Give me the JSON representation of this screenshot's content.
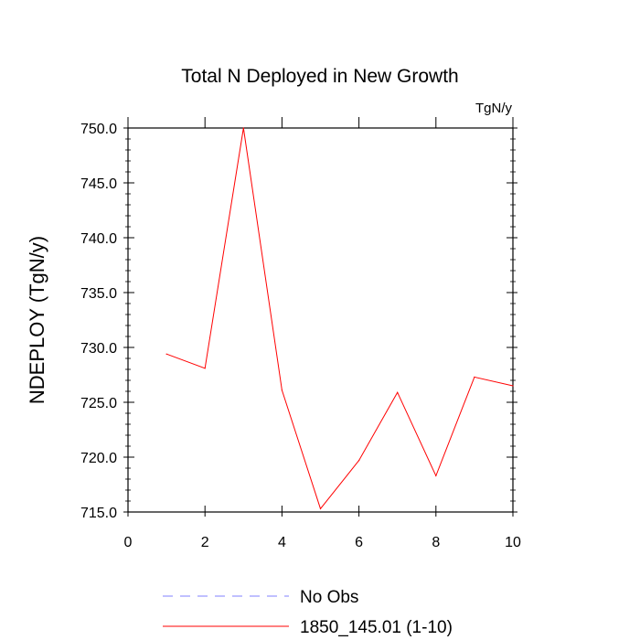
{
  "chart_data": {
    "type": "line",
    "title": "Total N Deployed in New Growth",
    "units_label": "TgN/y",
    "xlabel": "",
    "ylabel": "NDEPLOY  (TgN/y)",
    "xlim": [
      0,
      10
    ],
    "ylim": [
      715,
      750
    ],
    "x_ticks": [
      0,
      2,
      4,
      6,
      8,
      10
    ],
    "x_tick_labels": [
      "0",
      "2",
      "4",
      "6",
      "8",
      "10"
    ],
    "y_ticks": [
      715,
      720,
      725,
      730,
      735,
      740,
      745,
      750
    ],
    "y_tick_labels": [
      "715.0",
      "720.0",
      "725.0",
      "730.0",
      "735.0",
      "740.0",
      "745.0",
      "750.0"
    ],
    "grid": false,
    "legend_position": "bottom",
    "series": [
      {
        "name": "1850_145.01 (1-10)",
        "color": "#ff0000",
        "dash": "solid",
        "x": [
          1,
          2,
          3,
          4,
          5,
          6,
          7,
          8,
          9,
          10
        ],
        "values": [
          729.4,
          728.1,
          750.0,
          726.1,
          715.3,
          719.7,
          725.9,
          718.3,
          727.3,
          726.5
        ]
      }
    ],
    "legend": [
      {
        "label": "No Obs",
        "color": "#8080ff",
        "dash": "dashed"
      },
      {
        "label": "1850_145.01 (1-10)",
        "color": "#ff0000",
        "dash": "solid"
      }
    ]
  }
}
